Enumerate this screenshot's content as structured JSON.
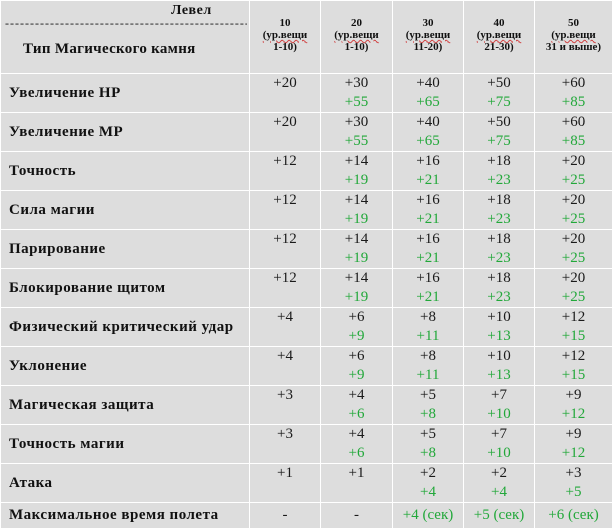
{
  "header": {
    "level_label": "Левел",
    "dashes": "--------------------------------------------------------------------------------------",
    "type_label": "Тип Магического камня",
    "levels": [
      {
        "num": "10",
        "sub1": "(ур.вещи",
        "sub2": "1-10)"
      },
      {
        "num": "20",
        "sub1": "(ур.вещи",
        "sub2": "1-10)"
      },
      {
        "num": "30",
        "sub1": "(ур.вещи",
        "sub2": "11-20)"
      },
      {
        "num": "40",
        "sub1": "(ур.вещи",
        "sub2": "21-30)"
      },
      {
        "num": "50",
        "sub1": "(ур.вещи",
        "sub2": "31 и выше)"
      }
    ]
  },
  "rows": [
    {
      "name": "Увеличение HP",
      "vals": [
        [
          "+20",
          ""
        ],
        [
          "+30",
          "+55"
        ],
        [
          "+40",
          "+65"
        ],
        [
          "+50",
          "+75"
        ],
        [
          "+60",
          "+85"
        ]
      ]
    },
    {
      "name": "Увеличение MP",
      "vals": [
        [
          "+20",
          ""
        ],
        [
          "+30",
          "+55"
        ],
        [
          "+40",
          "+65"
        ],
        [
          "+50",
          "+75"
        ],
        [
          "+60",
          "+85"
        ]
      ]
    },
    {
      "name": "Точность",
      "vals": [
        [
          "+12",
          ""
        ],
        [
          "+14",
          "+19"
        ],
        [
          "+16",
          "+21"
        ],
        [
          "+18",
          "+23"
        ],
        [
          "+20",
          "+25"
        ]
      ]
    },
    {
      "name": "Сила магии",
      "vals": [
        [
          "+12",
          ""
        ],
        [
          "+14",
          "+19"
        ],
        [
          "+16",
          "+21"
        ],
        [
          "+18",
          "+23"
        ],
        [
          "+20",
          "+25"
        ]
      ]
    },
    {
      "name": "Парирование",
      "vals": [
        [
          "+12",
          ""
        ],
        [
          "+14",
          "+19"
        ],
        [
          "+16",
          "+21"
        ],
        [
          "+18",
          "+23"
        ],
        [
          "+20",
          "+25"
        ]
      ]
    },
    {
      "name": "Блокирование щитом",
      "vals": [
        [
          "+12",
          ""
        ],
        [
          "+14",
          "+19"
        ],
        [
          "+16",
          "+21"
        ],
        [
          "+18",
          "+23"
        ],
        [
          "+20",
          "+25"
        ]
      ]
    },
    {
      "name": "Физический критический удар",
      "vals": [
        [
          "+4",
          ""
        ],
        [
          "+6",
          "+9"
        ],
        [
          "+8",
          "+11"
        ],
        [
          "+10",
          "+13"
        ],
        [
          "+12",
          "+15"
        ]
      ]
    },
    {
      "name": "Уклонение",
      "vals": [
        [
          "+4",
          ""
        ],
        [
          "+6",
          "+9"
        ],
        [
          "+8",
          "+11"
        ],
        [
          "+10",
          "+13"
        ],
        [
          "+12",
          "+15"
        ]
      ]
    },
    {
      "name": "Магическая защита",
      "vals": [
        [
          "+3",
          ""
        ],
        [
          "+4",
          "+6"
        ],
        [
          "+5",
          "+8"
        ],
        [
          "+7",
          "+10"
        ],
        [
          "+9",
          "+12"
        ]
      ]
    },
    {
      "name": "Точность магии",
      "vals": [
        [
          "+3",
          ""
        ],
        [
          "+4",
          "+6"
        ],
        [
          "+5",
          "+8"
        ],
        [
          "+7",
          "+10"
        ],
        [
          "+9",
          "+12"
        ]
      ]
    },
    {
      "name": "Атака",
      "vals": [
        [
          "+1",
          ""
        ],
        [
          "+1",
          ""
        ],
        [
          "+2",
          "+4"
        ],
        [
          "+2",
          "+4"
        ],
        [
          "+3",
          "+5"
        ]
      ]
    }
  ],
  "last_row": {
    "name": "Максимальное время полета",
    "vals": [
      {
        "text": "-",
        "green": false
      },
      {
        "text": "-",
        "green": false
      },
      {
        "text": "+4 (сек)",
        "green": true
      },
      {
        "text": "+5 (сек)",
        "green": true
      },
      {
        "text": "+6 (сек)",
        "green": true
      }
    ]
  },
  "colors": {
    "background": "#dddddd",
    "grid": "#ffffff",
    "green_value": "#22a83a"
  }
}
